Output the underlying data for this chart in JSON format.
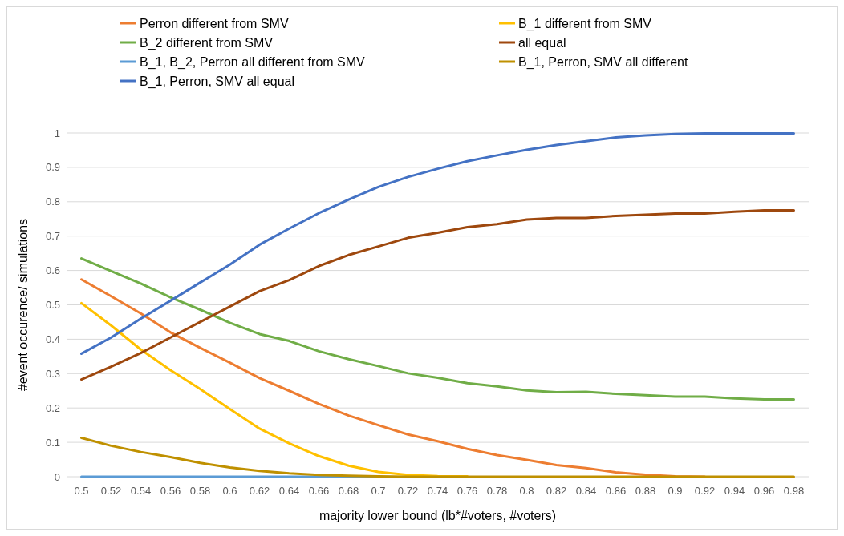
{
  "chart_data": {
    "type": "line",
    "xlabel": "majority lower bound (lb*#voters, #voters)",
    "ylabel": "#event occurence/ simulations",
    "categories": [
      "0.5",
      "0.52",
      "0.54",
      "0.56",
      "0.58",
      "0.6",
      "0.62",
      "0.64",
      "0.66",
      "0.68",
      "0.7",
      "0.72",
      "0.74",
      "0.76",
      "0.78",
      "0.8",
      "0.82",
      "0.84",
      "0.86",
      "0.88",
      "0.9",
      "0.92",
      "0.94",
      "0.96",
      "0.98"
    ],
    "ylim": [
      0,
      1
    ],
    "yticks": [
      0,
      0.1,
      0.2,
      0.3,
      0.4,
      0.5,
      0.6,
      0.7,
      0.8,
      0.9,
      1
    ],
    "grid": "y",
    "legend": "top",
    "marker": "none",
    "line_style": "solid",
    "series": [
      {
        "name": "Perron different from SMV",
        "color": "#ed7d31",
        "values": [
          0.574,
          0.525,
          0.475,
          0.42,
          0.375,
          0.332,
          0.287,
          0.25,
          0.212,
          0.178,
          0.15,
          0.123,
          0.103,
          0.081,
          0.063,
          0.049,
          0.034,
          0.025,
          0.013,
          0.006,
          0.001,
          0,
          null,
          null,
          null
        ]
      },
      {
        "name": "B_1 different from SMV",
        "color": "#ffc000",
        "values": [
          0.505,
          0.44,
          0.37,
          0.31,
          0.255,
          0.197,
          0.14,
          0.097,
          0.06,
          0.032,
          0.014,
          0.005,
          0.002,
          0.001,
          null,
          null,
          null,
          null,
          null,
          null,
          null,
          null,
          null,
          null,
          null
        ]
      },
      {
        "name": "B_2 different from SMV",
        "color": "#70ad47",
        "values": [
          0.635,
          0.598,
          0.562,
          0.522,
          0.486,
          0.448,
          0.415,
          0.395,
          0.365,
          0.342,
          0.322,
          0.301,
          0.288,
          0.272,
          0.263,
          0.251,
          0.246,
          0.247,
          0.241,
          0.237,
          0.233,
          0.233,
          0.228,
          0.225,
          0.225
        ]
      },
      {
        "name": "all equal",
        "color": "#9e480e",
        "values": [
          0.283,
          0.32,
          0.36,
          0.405,
          0.45,
          0.495,
          0.54,
          0.572,
          0.613,
          0.645,
          0.67,
          0.695,
          0.71,
          0.726,
          0.735,
          0.748,
          0.753,
          0.753,
          0.759,
          0.762,
          0.766,
          0.766,
          0.771,
          0.775,
          0.775
        ]
      },
      {
        "name": "B_1, B_2, Perron all different from SMV",
        "color": "#5b9bd5",
        "values": [
          0,
          0,
          0,
          0,
          0,
          0,
          0,
          0,
          0,
          0,
          0,
          null,
          null,
          null,
          null,
          null,
          null,
          null,
          null,
          null,
          null,
          null,
          null,
          null,
          null
        ]
      },
      {
        "name": "B_1, Perron, SMV all different",
        "color": "#bf9000",
        "values": [
          0.113,
          0.09,
          0.072,
          0.057,
          0.04,
          0.027,
          0.017,
          0.01,
          0.005,
          0.003,
          0.001,
          0,
          0,
          0,
          0,
          0,
          0,
          0,
          0,
          0,
          0,
          0,
          0,
          0,
          0
        ]
      },
      {
        "name": "B_1, Perron, SMV all equal",
        "color": "#4472c4",
        "values": [
          0.358,
          0.405,
          0.46,
          0.512,
          0.565,
          0.617,
          0.675,
          0.722,
          0.767,
          0.806,
          0.843,
          0.872,
          0.896,
          0.918,
          0.935,
          0.951,
          0.965,
          0.976,
          0.987,
          0.993,
          0.997,
          0.999,
          0.999,
          0.999,
          0.999
        ]
      }
    ]
  }
}
